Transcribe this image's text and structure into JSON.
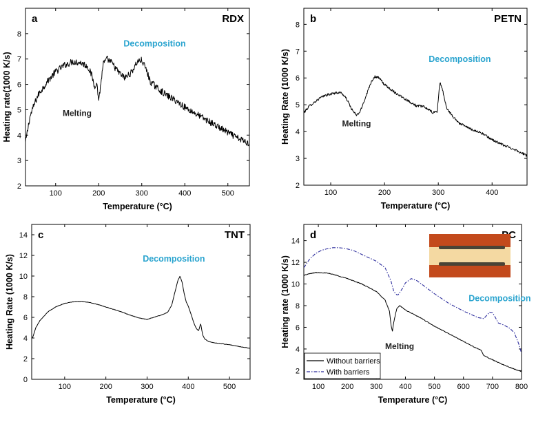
{
  "chart_data": [
    {
      "type": "line",
      "panel_letter": "a",
      "title": "RDX",
      "xlabel": "Temperature (°C)",
      "ylabel": "Heating rate(1000 K/s)",
      "xlim": [
        30,
        550
      ],
      "ylim": [
        2,
        9
      ],
      "xticks": [
        100,
        200,
        300,
        400,
        500
      ],
      "yticks": [
        2,
        3,
        4,
        5,
        6,
        7,
        8
      ],
      "series": [
        {
          "name": "RDX",
          "style": "solid",
          "color": "#000000",
          "noise": 0.13,
          "x": [
            30,
            40,
            50,
            60,
            80,
            100,
            120,
            140,
            160,
            175,
            185,
            190,
            195,
            200,
            205,
            210,
            220,
            230,
            245,
            260,
            275,
            290,
            300,
            310,
            320,
            340,
            360,
            380,
            400,
            420,
            440,
            460,
            480,
            500,
            520,
            540,
            550
          ],
          "y": [
            3.7,
            4.7,
            5.2,
            5.6,
            6.1,
            6.5,
            6.75,
            6.9,
            6.85,
            6.7,
            6.3,
            5.9,
            6.1,
            5.4,
            6.0,
            6.8,
            7.0,
            6.85,
            6.5,
            6.25,
            6.45,
            6.9,
            6.95,
            6.6,
            6.1,
            5.8,
            5.55,
            5.35,
            5.1,
            4.9,
            4.7,
            4.5,
            4.3,
            4.1,
            3.9,
            3.75,
            3.65
          ]
        }
      ],
      "annotations": [
        {
          "text": "Melting",
          "x": 150,
          "y": 4.75,
          "style": "melt"
        },
        {
          "text": "Decomposition",
          "x": 330,
          "y": 7.5,
          "style": "decomp"
        }
      ]
    },
    {
      "type": "line",
      "panel_letter": "b",
      "title": "PETN",
      "xlabel": "Temperature (°C)",
      "ylabel": "Heating Rate (1000 K/s)",
      "xlim": [
        50,
        465
      ],
      "ylim": [
        2,
        8.6
      ],
      "xticks": [
        100,
        200,
        300,
        400
      ],
      "yticks": [
        2,
        3,
        4,
        5,
        6,
        7,
        8
      ],
      "series": [
        {
          "name": "PETN",
          "style": "solid",
          "color": "#000000",
          "noise": 0.045,
          "x": [
            50,
            60,
            70,
            80,
            90,
            100,
            110,
            120,
            130,
            140,
            148,
            155,
            165,
            175,
            182,
            190,
            200,
            220,
            240,
            260,
            270,
            280,
            290,
            298,
            303,
            308,
            315,
            325,
            340,
            360,
            380,
            400,
            420,
            440,
            455,
            465
          ],
          "y": [
            4.7,
            4.95,
            5.1,
            5.25,
            5.35,
            5.4,
            5.45,
            5.45,
            5.2,
            4.8,
            4.6,
            4.75,
            5.3,
            5.85,
            6.05,
            6.0,
            5.75,
            5.45,
            5.2,
            4.95,
            4.95,
            4.85,
            4.7,
            4.75,
            5.85,
            5.55,
            4.9,
            4.6,
            4.3,
            4.1,
            3.95,
            3.7,
            3.5,
            3.35,
            3.2,
            3.1
          ]
        }
      ],
      "annotations": [
        {
          "text": "Melting",
          "x": 148,
          "y": 4.2,
          "style": "melt"
        },
        {
          "text": "Decomposition",
          "x": 340,
          "y": 6.6,
          "style": "decomp"
        }
      ]
    },
    {
      "type": "line",
      "panel_letter": "c",
      "title": "TNT",
      "xlabel": "Temperature (°C)",
      "ylabel": "Heating Rate (1000 K/s)",
      "xlim": [
        20,
        550
      ],
      "ylim": [
        0,
        15
      ],
      "xticks": [
        100,
        200,
        300,
        400,
        500
      ],
      "yticks": [
        0,
        2,
        4,
        6,
        8,
        10,
        12,
        14
      ],
      "series": [
        {
          "name": "TNT",
          "style": "solid",
          "color": "#000000",
          "noise": 0.02,
          "x": [
            22,
            30,
            40,
            60,
            80,
            100,
            120,
            140,
            160,
            180,
            200,
            220,
            240,
            260,
            280,
            300,
            320,
            340,
            350,
            360,
            368,
            375,
            380,
            385,
            390,
            395,
            400,
            405,
            410,
            415,
            420,
            425,
            430,
            435,
            440,
            450,
            460,
            480,
            500,
            520,
            550
          ],
          "y": [
            4.0,
            5.0,
            5.7,
            6.55,
            7.05,
            7.35,
            7.5,
            7.55,
            7.45,
            7.25,
            7.0,
            6.75,
            6.5,
            6.2,
            5.95,
            5.8,
            6.05,
            6.3,
            6.5,
            7.2,
            8.5,
            9.6,
            10.0,
            9.4,
            8.3,
            7.5,
            7.1,
            6.5,
            5.9,
            5.3,
            4.9,
            4.7,
            5.4,
            4.3,
            3.9,
            3.65,
            3.55,
            3.45,
            3.35,
            3.2,
            3.0
          ]
        }
      ],
      "annotations": [
        {
          "text": "Decomposition",
          "x": 365,
          "y": 11.4,
          "style": "decomp"
        }
      ]
    },
    {
      "type": "line",
      "panel_letter": "d",
      "title": "PC",
      "xlabel": "Temperature (°C)",
      "ylabel": "Heating rate (1000 K/s)",
      "xlim": [
        50,
        800
      ],
      "ylim": [
        1.2,
        15.5
      ],
      "xticks": [
        100,
        200,
        300,
        400,
        500,
        600,
        700,
        800
      ],
      "yticks": [
        2,
        4,
        6,
        8,
        10,
        12,
        14
      ],
      "series": [
        {
          "name": "Without barriers",
          "style": "solid",
          "color": "#000000",
          "noise": 0.03,
          "x": [
            50,
            70,
            90,
            110,
            130,
            150,
            200,
            250,
            300,
            330,
            345,
            350,
            355,
            360,
            370,
            380,
            390,
            400,
            450,
            500,
            550,
            600,
            650,
            660,
            670,
            700,
            750,
            800
          ],
          "y": [
            10.8,
            10.95,
            11.05,
            11.05,
            11.0,
            10.9,
            10.5,
            10.0,
            9.3,
            8.5,
            7.5,
            6.3,
            5.6,
            6.5,
            7.7,
            8.0,
            7.8,
            7.6,
            6.9,
            6.1,
            5.4,
            4.7,
            4.0,
            3.9,
            3.4,
            3.0,
            2.4,
            1.9
          ]
        },
        {
          "name": "With barriers",
          "style": "dashdot",
          "color": "#2b2b9c",
          "noise": 0.0,
          "x": [
            50,
            70,
            90,
            110,
            130,
            150,
            170,
            190,
            220,
            260,
            300,
            330,
            350,
            360,
            370,
            375,
            380,
            390,
            400,
            420,
            440,
            460,
            500,
            550,
            600,
            650,
            670,
            680,
            690,
            700,
            710,
            720,
            740,
            760,
            775,
            790,
            800
          ],
          "y": [
            11.5,
            12.3,
            12.8,
            13.1,
            13.25,
            13.35,
            13.35,
            13.3,
            13.1,
            12.6,
            12.1,
            11.5,
            10.3,
            9.3,
            9.0,
            9.0,
            9.2,
            9.6,
            10.1,
            10.5,
            10.3,
            9.9,
            9.1,
            8.2,
            7.5,
            6.9,
            6.8,
            7.1,
            7.4,
            7.35,
            6.9,
            6.4,
            6.2,
            5.9,
            5.5,
            4.5,
            3.6
          ]
        }
      ],
      "annotations": [
        {
          "text": "Melting",
          "x": 380,
          "y": 4.0,
          "style": "melt"
        },
        {
          "text": "Decomposition",
          "x": 725,
          "y": 8.4,
          "style": "decomp"
        }
      ],
      "legend": [
        {
          "label": "Without barriers",
          "style": "solid",
          "color": "#000000"
        },
        {
          "label": "With barriers",
          "style": "dashdot",
          "color": "#2b2b9c"
        }
      ],
      "legend_position": "bottom-left",
      "inset_image": "sample-photo",
      "inset_colors": {
        "frame": "#c34a1c",
        "band": "#f4d9a2",
        "strip": "#4a4436"
      }
    }
  ]
}
